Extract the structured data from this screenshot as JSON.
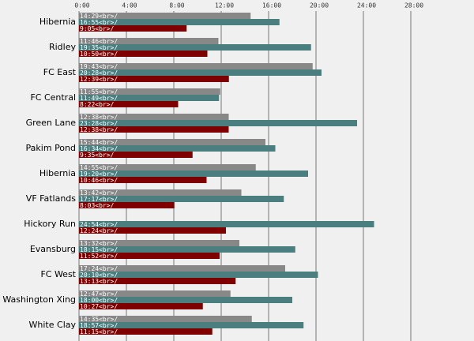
{
  "chart_data": {
    "type": "bar",
    "orientation": "horizontal",
    "categories": [
      "Hibernia",
      "Ridley",
      "FC East",
      "FC Central",
      "Green Lane",
      "Pakim Pond",
      "Hibernia",
      "VF Fatlands",
      "Hickory Run",
      "Evansburg",
      "FC West",
      "Washington Xing",
      "White Clay"
    ],
    "series": [
      {
        "color": "#888888",
        "values": [
          869,
          706,
          1183,
          715,
          758,
          944,
          895,
          822,
          null,
          812,
          1044,
          767,
          875
        ],
        "value_labels": [
          "14:29<br>/",
          "11:46<br>/",
          "19:43<br>/",
          "11:55<br>/",
          "12:38<br>/",
          "15:44<br>/",
          "14:55<br>/",
          "13:42<br>/",
          null,
          "13:32<br>/",
          "17:24<br>/",
          "12:47<br>/",
          "14:35<br>/"
        ]
      },
      {
        "color": "#4b7f7f",
        "values": [
          1015,
          1175,
          1228,
          709,
          1408,
          994,
          1160,
          1037,
          1494,
          1095,
          1210,
          1080,
          1137
        ],
        "value_labels": [
          "16:55<br>/",
          "19:35<br>/",
          "20:28<br>/",
          "11:49<br>/",
          "23:28<br>/",
          "16:34<br>/",
          "19:20<br>/",
          "17:17<br>/",
          "24:54<br>/",
          "18:15<br>/",
          "20:10<br>/",
          "18:00<br>/",
          "18:57<br>/"
        ]
      },
      {
        "color": "#7f0000",
        "values": [
          545,
          650,
          759,
          502,
          758,
          575,
          646,
          483,
          744,
          712,
          793,
          627,
          675
        ],
        "value_labels": [
          "9:05<br>/",
          "10:50<br>/",
          "12:39<br>/",
          "8:22<br>/",
          "12:38<br>/",
          "9:35<br>/",
          "10:46<br>/",
          "8:03<br>/",
          "12:24<br>/",
          "11:52<br>/",
          "13:13<br>/",
          "10:27<br>/",
          "11:15<br>/"
        ]
      }
    ],
    "xlim": [
      0,
      2000
    ],
    "xticks": [
      {
        "value": 0,
        "label": "0:00"
      },
      {
        "value": 240,
        "label": "4:00"
      },
      {
        "value": 480,
        "label": "8:00"
      },
      {
        "value": 720,
        "label": "12:00"
      },
      {
        "value": 960,
        "label": "16:00"
      },
      {
        "value": 1200,
        "label": "20:00"
      },
      {
        "value": 1440,
        "label": "24:00"
      },
      {
        "value": 1680,
        "label": "28:00"
      }
    ],
    "grid": true
  }
}
